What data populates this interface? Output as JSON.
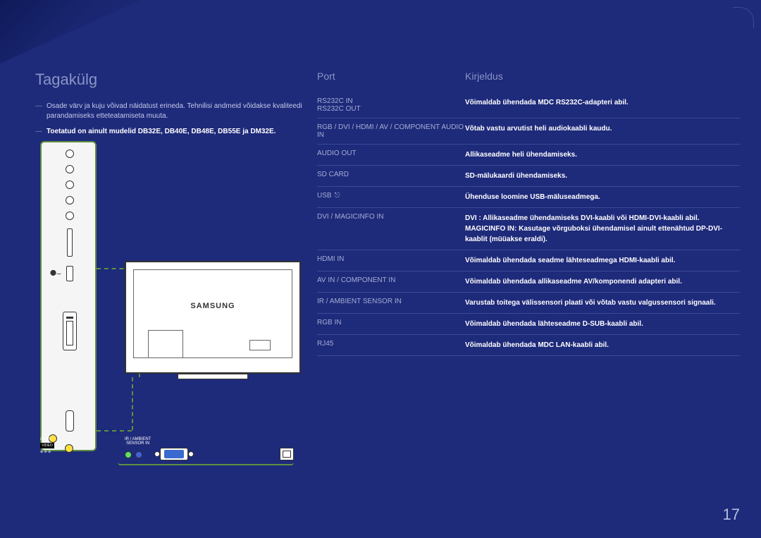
{
  "title": "Tagakülg",
  "notes": [
    {
      "dash": "―",
      "text": "Osade värv ja kuju võivad näidatust erineda. Tehnilisi andmeid võidakse kvaliteedi parandamiseks etteteatamiseta muuta.",
      "bold": false
    },
    {
      "dash": "―",
      "text": "Toetatud on ainult mudelid DB32E, DB40E, DB48E, DB55E ja DM32E.",
      "bold": true
    }
  ],
  "columns": {
    "port": "Port",
    "desc": "Kirjeldus"
  },
  "rows": [
    {
      "port": "RS232C IN\nRS232C OUT",
      "desc": "Võimaldab ühendada MDC RS232C-adapteri abil."
    },
    {
      "port": "RGB / DVI / HDMI / AV / COMPONENT AUDIO IN",
      "desc": "Võtab vastu arvutist heli audiokaabli kaudu."
    },
    {
      "port": "AUDIO OUT",
      "desc": "Allikaseadme heli ühendamiseks."
    },
    {
      "port": "SD CARD",
      "desc": "SD-mälukaardi ühendamiseks."
    },
    {
      "port": "USB",
      "usb": true,
      "desc": "Ühenduse loomine USB-mäluseadmega."
    },
    {
      "port": "DVI / MAGICINFO IN",
      "desc": "DVI : Allikaseadme ühendamiseks DVI-kaabli või HDMI-DVI-kaabli abil.\nMAGICINFO IN: Kasutage võrguboksi ühendamisel ainult ettenähtud DP-DVI-kaablit (müüakse eraldi)."
    },
    {
      "port": "HDMI IN",
      "desc": "Võimaldab ühendada seadme lähteseadmega HDMI-kaabli abil."
    },
    {
      "port": "AV IN / COMPONENT IN",
      "desc": "Võimaldab ühendada allikaseadme AV/komponendi adapteri abil."
    },
    {
      "port": "IR / AMBIENT SENSOR IN",
      "desc": "Varustab toitega välissensori plaati või võtab vastu valgussensori signaali."
    },
    {
      "port": "RGB IN",
      "desc": "Võimaldab ühendada lähteseadme D-SUB-kaabli abil."
    },
    {
      "port": "RJ45",
      "desc": "Võimaldab ühendada MDC LAN-kaabli abil."
    }
  ],
  "monitor_logo": "SAMSUNG",
  "bottom_labels": {
    "avin": "AV IN",
    "video": "VIDEO",
    "ir": "IR / AMBIENT\nSENSOR IN"
  },
  "page_number": "17",
  "colors": {
    "bg": "#1e2a7a",
    "accent_green": "#5d8f3f",
    "text_muted": "#8a95c5",
    "row_border": "#3a4a9a"
  }
}
